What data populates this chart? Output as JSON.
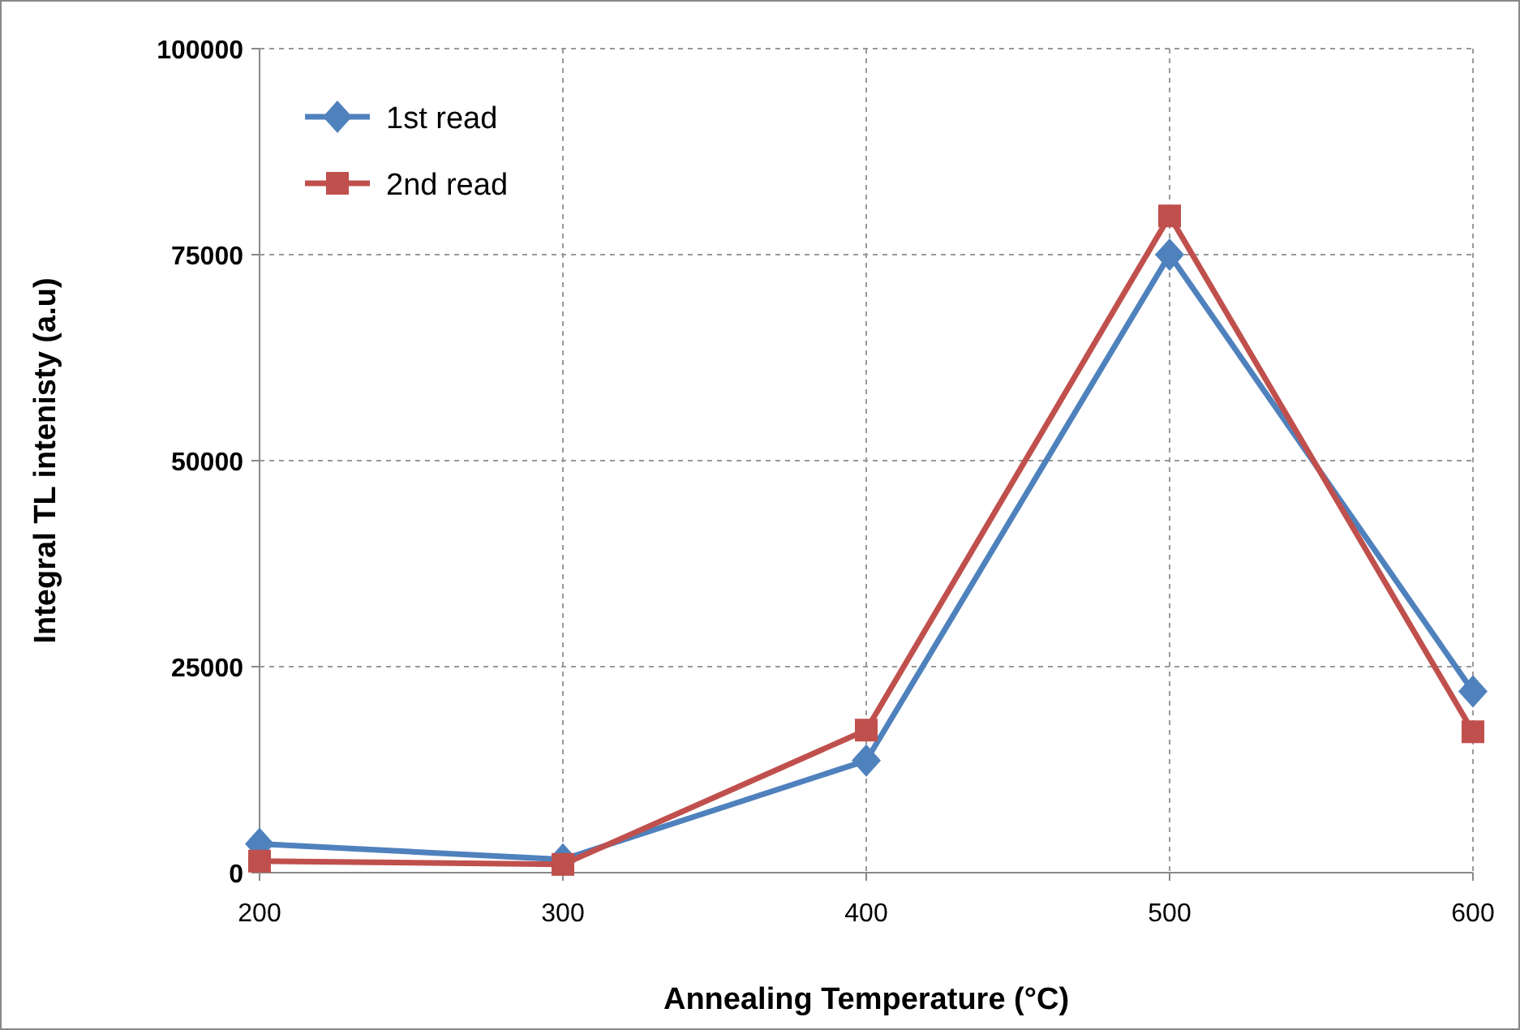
{
  "chart_data": {
    "type": "line",
    "xlabel": "Annealing Temperature (°C)",
    "ylabel": "Integral TL intenisty (a.u)",
    "x": [
      200,
      300,
      400,
      500,
      600
    ],
    "xlim": [
      200,
      600
    ],
    "xticks": [
      200,
      300,
      400,
      500,
      600
    ],
    "ylim": [
      0,
      100000
    ],
    "yticks": [
      0,
      25000,
      50000,
      75000,
      100000
    ],
    "grid": true,
    "legend": "top left",
    "line_style": "solid",
    "series": [
      {
        "name": "1st read",
        "color": "#4f81bd",
        "marker": "diamond",
        "values": [
          3500,
          1600,
          13600,
          75000,
          22000
        ]
      },
      {
        "name": "2nd read",
        "color": "#c0504d",
        "marker": "square",
        "values": [
          1400,
          1000,
          17300,
          79700,
          17100
        ]
      }
    ]
  }
}
